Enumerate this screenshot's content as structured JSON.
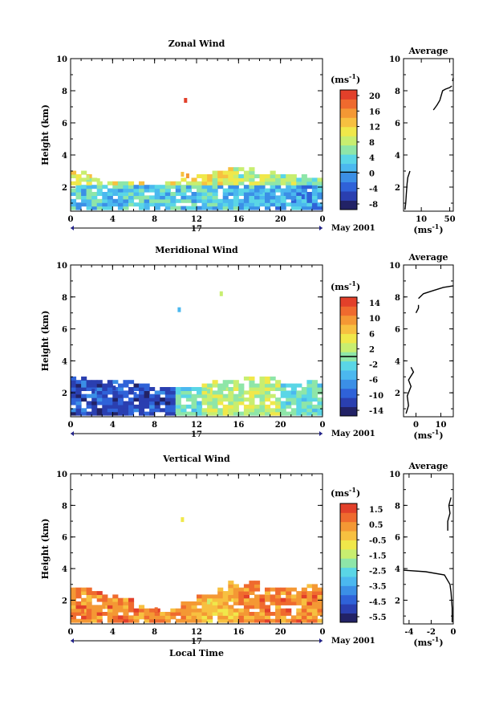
{
  "chart_data": [
    {
      "type": "heatmap",
      "title": "Zonal Wind",
      "ylabel": "Height (km)",
      "xlabel": "",
      "xlim": [
        0,
        24
      ],
      "ylim": [
        0.5,
        10
      ],
      "xticks": [
        "0",
        "4",
        "8",
        "12",
        "16",
        "20",
        "0"
      ],
      "yticks": [
        "2",
        "4",
        "6",
        "8",
        "10"
      ],
      "date_label": "17",
      "month_label": "May 2001",
      "colorbar": {
        "unit": "(ms",
        "unit_exp": "-1",
        "unit_close": ")",
        "ticks": [
          "20",
          "16",
          "12",
          "8",
          "4",
          "0",
          "-4",
          "-8"
        ],
        "min": -10,
        "max": 22,
        "zero": 0,
        "colors": [
          "#222266",
          "#2a3fb0",
          "#2f62d8",
          "#3b8fe6",
          "#4bb8ef",
          "#5ad6e6",
          "#8ee6a8",
          "#c8ee70",
          "#f0e84a",
          "#f7c040",
          "#f49834",
          "#ef6a2e",
          "#e2402a"
        ]
      },
      "field": {
        "top_km": [
          2.8,
          2.6,
          2.4,
          2.2,
          2.1,
          2.1,
          2.2,
          2.4,
          2.7,
          2.9,
          3.0,
          2.9,
          2.8,
          2.7,
          2.6,
          2.4,
          2.3
        ],
        "cells": [
          {
            "t": 0.5,
            "z": 2.5,
            "v": 10
          },
          {
            "t": 1.5,
            "z": 2.5,
            "v": 9
          },
          {
            "t": 0.5,
            "z": 2.2,
            "v": 12
          },
          {
            "t": 2.5,
            "z": 2.3,
            "v": 8
          },
          {
            "t": 10.5,
            "z": 2.7,
            "v": 14
          },
          {
            "t": 11,
            "z": 2.6,
            "v": 16
          },
          {
            "t": 10.8,
            "z": 7.3,
            "v": 20
          },
          {
            "t": 18,
            "z": 1.6,
            "v": 2
          },
          {
            "t": 20,
            "z": 1.5,
            "v": 1
          },
          {
            "t": 21,
            "z": 1.2,
            "v": -2
          },
          {
            "t": 22,
            "z": 1.3,
            "v": -4
          },
          {
            "t": 23,
            "z": 1.6,
            "v": 0
          }
        ]
      },
      "average": {
        "title": "Average",
        "xlabel": "(ms",
        "xlabel_exp": "-1",
        "xlabel_close": ")",
        "xticks": [
          "10",
          "50"
        ],
        "xlim": [
          -15,
          55
        ],
        "ylim": [
          0.5,
          10
        ],
        "yticks": [
          "2",
          "4",
          "6",
          "8",
          "10"
        ],
        "segments": [
          [
            [
              -13,
              0.6
            ],
            [
              -12,
              1.0
            ],
            [
              -11,
              1.6
            ],
            [
              -10,
              2.2
            ],
            [
              -9,
              2.6
            ],
            [
              -6,
              3.0
            ]
          ],
          [
            [
              27,
              6.8
            ],
            [
              32,
              7.1
            ],
            [
              36,
              7.4
            ],
            [
              40,
              8.0
            ],
            [
              44,
              8.1
            ],
            [
              50,
              8.2
            ],
            [
              53,
              8.3
            ]
          ],
          [
            [
              54,
              8.6
            ],
            [
              55,
              8.8
            ]
          ]
        ]
      }
    },
    {
      "type": "heatmap",
      "title": "Meridional Wind",
      "ylabel": "Height (km)",
      "xlabel": "",
      "xlim": [
        0,
        24
      ],
      "ylim": [
        0.5,
        10
      ],
      "xticks": [
        "0",
        "4",
        "8",
        "12",
        "16",
        "20",
        "0"
      ],
      "yticks": [
        "2",
        "4",
        "6",
        "8",
        "10"
      ],
      "date_label": "17",
      "month_label": "May 2001",
      "colorbar": {
        "unit": "(ms",
        "unit_exp": "-1",
        "unit_close": ")",
        "ticks": [
          "14",
          "10",
          "6",
          "2",
          "-2",
          "-6",
          "-10",
          "-14"
        ],
        "min": -16,
        "max": 16,
        "zero": 0,
        "colors": [
          "#222266",
          "#2a3fb0",
          "#2f62d8",
          "#3b8fe6",
          "#4bb8ef",
          "#5ad6e6",
          "#8ee6a8",
          "#c8ee70",
          "#f0e84a",
          "#f7c040",
          "#f49834",
          "#ef6a2e",
          "#e2402a"
        ]
      },
      "field": {
        "top_km": [
          2.8,
          2.7,
          2.6,
          2.6,
          2.5,
          2.3,
          2.2,
          2.3,
          2.5,
          2.7,
          2.8,
          2.9,
          2.8,
          2.6,
          2.5,
          2.6,
          2.8
        ],
        "cells": [
          {
            "t": 2,
            "z": 2.0,
            "v": -12
          },
          {
            "t": 4,
            "z": 2.2,
            "v": -13
          },
          {
            "t": 6,
            "z": 1.8,
            "v": -11
          },
          {
            "t": 13,
            "z": 2.0,
            "v": -1
          },
          {
            "t": 14.5,
            "z": 2.2,
            "v": 1
          },
          {
            "t": 16,
            "z": 1.8,
            "v": 0
          },
          {
            "t": 10.2,
            "z": 7.1,
            "v": -6
          },
          {
            "t": 14.2,
            "z": 8.1,
            "v": 2
          }
        ]
      },
      "average": {
        "title": "Average",
        "xlabel": "(ms",
        "xlabel_exp": "-1",
        "xlabel_close": ")",
        "xticks": [
          "0",
          "10"
        ],
        "xlim": [
          -5,
          15
        ],
        "ylim": [
          0.5,
          10
        ],
        "yticks": [
          "2",
          "4",
          "6",
          "8",
          "10"
        ],
        "segments": [
          [
            [
              -4,
              0.7
            ],
            [
              -3,
              1.2
            ],
            [
              -3.5,
              1.8
            ],
            [
              -2,
              2.4
            ],
            [
              -3,
              2.8
            ],
            [
              -1,
              3.3
            ],
            [
              -2,
              3.6
            ]
          ],
          [
            [
              0,
              7.0
            ],
            [
              1,
              7.3
            ],
            [
              1,
              7.5
            ]
          ],
          [
            [
              1,
              7.9
            ],
            [
              3,
              8.2
            ],
            [
              7,
              8.4
            ],
            [
              11,
              8.6
            ],
            [
              15,
              8.7
            ]
          ]
        ]
      }
    },
    {
      "type": "heatmap",
      "title": "Vertical Wind",
      "ylabel": "Height (km)",
      "xlabel": "Local Time",
      "xlim": [
        0,
        24
      ],
      "ylim": [
        0.5,
        10
      ],
      "xticks": [
        "0",
        "4",
        "8",
        "12",
        "16",
        "20",
        "0"
      ],
      "yticks": [
        "2",
        "4",
        "6",
        "8",
        "10"
      ],
      "date_label": "17",
      "month_label": "May 2001",
      "colorbar": {
        "unit": "(ms",
        "unit_exp": "-1",
        "unit_close": ")",
        "ticks": [
          "1.5",
          "0.5",
          "-0.5",
          "-1.5",
          "-2.5",
          "-3.5",
          "-4.5",
          "-5.5"
        ],
        "min": -6,
        "max": 2,
        "zero": null,
        "colors": [
          "#222266",
          "#2a3fb0",
          "#2f62d8",
          "#3b8fe6",
          "#4bb8ef",
          "#5ad6e6",
          "#8ee6a8",
          "#c8ee70",
          "#f0e84a",
          "#f7c040",
          "#f49834",
          "#ef6a2e",
          "#e2402a"
        ]
      },
      "field": {
        "top_km": [
          2.8,
          2.6,
          2.3,
          2.0,
          1.6,
          1.3,
          1.4,
          1.8,
          2.3,
          2.7,
          2.9,
          3.0,
          2.9,
          2.8,
          2.6,
          2.7,
          2.9
        ],
        "cells": [
          {
            "t": 1,
            "z": 1.2,
            "v": 0.8
          },
          {
            "t": 3,
            "z": 1.5,
            "v": 0.5
          },
          {
            "t": 8,
            "z": 1.3,
            "v": 0.9
          },
          {
            "t": 10.5,
            "z": 7.0,
            "v": -1.0
          },
          {
            "t": 13,
            "z": 1.8,
            "v": -1.5
          },
          {
            "t": 15,
            "z": 2.0,
            "v": 0.7
          }
        ]
      },
      "average": {
        "title": "Average",
        "xlabel": "(ms",
        "xlabel_exp": "-1",
        "xlabel_close": ")",
        "xticks": [
          "-4",
          "-2",
          "0"
        ],
        "xlim": [
          -4.5,
          0
        ],
        "ylim": [
          0.5,
          10
        ],
        "yticks": [
          "2",
          "4",
          "6",
          "8",
          "10"
        ],
        "segments": [
          [
            [
              -0.1,
              0.6
            ],
            [
              -0.1,
              1.5
            ],
            [
              -0.2,
              2.5
            ],
            [
              -0.3,
              3.0
            ],
            [
              -0.8,
              3.6
            ],
            [
              -2.5,
              3.8
            ],
            [
              -4.5,
              3.9
            ]
          ],
          [
            [
              -0.5,
              6.4
            ],
            [
              -0.5,
              7.0
            ],
            [
              -0.3,
              7.5
            ],
            [
              -0.4,
              8.0
            ],
            [
              -0.2,
              8.5
            ]
          ]
        ]
      }
    }
  ]
}
